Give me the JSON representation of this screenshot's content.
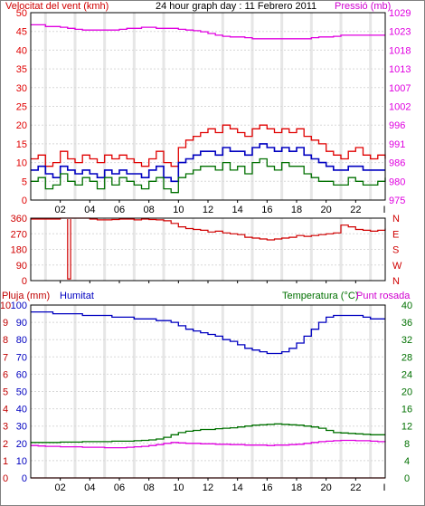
{
  "header": {
    "wind_title": "Velocitat del vent (kmh)",
    "date_title": "24 hour graph day : 11 Febrero 2011",
    "pressure_title": "Pressió (mb)",
    "rain_title": "Pluja (mm)",
    "humidity_title": "Humitat",
    "temp_title": "Temperatura (°C)",
    "dew_title": "Punt rosada"
  },
  "colors": {
    "wind_gust": "#e00000",
    "wind_avg": "#0000c0",
    "wind_min": "#007000",
    "pressure": "#e000e0",
    "direction": "#d00000",
    "humidity": "#0000c0",
    "temperature": "#007000",
    "dewpoint": "#e000e0",
    "rain": "#c00000",
    "grid": "#d8d8d8",
    "frame": "#000000"
  },
  "x_ticks": [
    "02",
    "04",
    "06",
    "08",
    "10",
    "12",
    "14",
    "16",
    "18",
    "20",
    "22"
  ],
  "chart_data": [
    {
      "type": "line",
      "name": "wind_and_pressure",
      "x": [
        0,
        0.5,
        1,
        1.5,
        2,
        2.5,
        3,
        3.5,
        4,
        4.5,
        5,
        5.5,
        6,
        6.5,
        7,
        7.5,
        8,
        8.5,
        9,
        9.5,
        10,
        10.5,
        11,
        11.5,
        12,
        12.5,
        13,
        13.5,
        14,
        14.5,
        15,
        15.5,
        16,
        16.5,
        17,
        17.5,
        18,
        18.5,
        19,
        19.5,
        20,
        20.5,
        21,
        21.5,
        22,
        22.5,
        23,
        23.5,
        24
      ],
      "series": [
        {
          "name": "gust",
          "axis": "left",
          "values": [
            11,
            12,
            9,
            10,
            13,
            11,
            10,
            12,
            11,
            10,
            12,
            11,
            12,
            11,
            10,
            9,
            11,
            13,
            10,
            9,
            14,
            16,
            17,
            18,
            19,
            18,
            20,
            19,
            18,
            17,
            19,
            20,
            19,
            18,
            19,
            18,
            19,
            17,
            16,
            15,
            13,
            12,
            11,
            13,
            14,
            12,
            11,
            12,
            11
          ]
        },
        {
          "name": "average",
          "axis": "left",
          "values": [
            8,
            9,
            7,
            6,
            9,
            8,
            7,
            8,
            7,
            6,
            8,
            7,
            8,
            7,
            7,
            6,
            8,
            9,
            6,
            5,
            10,
            11,
            12,
            13,
            13,
            12,
            14,
            13,
            13,
            12,
            14,
            15,
            14,
            13,
            14,
            13,
            14,
            12,
            11,
            10,
            9,
            8,
            8,
            9,
            9,
            8,
            8,
            8,
            8
          ]
        },
        {
          "name": "min",
          "axis": "left",
          "values": [
            5,
            6,
            3,
            4,
            7,
            5,
            4,
            6,
            5,
            3,
            6,
            4,
            6,
            5,
            4,
            3,
            5,
            6,
            3,
            2,
            6,
            7,
            8,
            9,
            9,
            8,
            10,
            8,
            9,
            7,
            10,
            11,
            9,
            8,
            10,
            9,
            9,
            7,
            6,
            5,
            5,
            4,
            4,
            6,
            5,
            4,
            4,
            5,
            6
          ]
        },
        {
          "name": "pressure",
          "axis": "right",
          "values": [
            1025.5,
            1025.5,
            1025,
            1025,
            1024.8,
            1024.5,
            1024.2,
            1024,
            1024,
            1024,
            1024,
            1024,
            1024.2,
            1024.5,
            1024.5,
            1024.8,
            1024.8,
            1024.5,
            1024.5,
            1024.5,
            1024.2,
            1024,
            1023.8,
            1023.5,
            1023,
            1022.5,
            1022.2,
            1022,
            1022,
            1021.8,
            1021.5,
            1021.5,
            1021.5,
            1021.5,
            1021.5,
            1021.5,
            1021.5,
            1021.5,
            1021.8,
            1022,
            1022,
            1022.2,
            1022.5,
            1022.5,
            1022.5,
            1022.5,
            1022.5,
            1022.5,
            1022.5
          ]
        }
      ],
      "left_axis": {
        "label": "Velocitat del vent (kmh)",
        "ylim": [
          0,
          50
        ],
        "ticks": [
          0,
          5,
          10,
          15,
          20,
          25,
          30,
          35,
          40,
          45,
          50
        ]
      },
      "right_axis": {
        "label": "Pressió (mb)",
        "ylim": [
          975,
          1029
        ],
        "ticks": [
          975,
          980,
          986,
          991,
          996,
          1002,
          1007,
          1013,
          1018,
          1023,
          1029
        ]
      }
    },
    {
      "type": "line",
      "name": "wind_direction",
      "x": [
        0,
        0.5,
        1,
        1.5,
        2,
        2.5,
        3,
        3.5,
        4,
        4.5,
        5,
        5.5,
        6,
        6.5,
        7,
        7.5,
        8,
        8.5,
        9,
        9.5,
        10,
        10.5,
        11,
        11.5,
        12,
        12.5,
        13,
        13.5,
        14,
        14.5,
        15,
        15.5,
        16,
        16.5,
        17,
        17.5,
        18,
        18.5,
        19,
        19.5,
        20,
        20.5,
        21,
        21.5,
        22,
        22.5,
        23,
        23.5,
        24
      ],
      "series": [
        {
          "name": "direction",
          "values": [
            355,
            355,
            355,
            355,
            360,
            360,
            5,
            360,
            355,
            350,
            350,
            352,
            355,
            355,
            350,
            355,
            352,
            350,
            345,
            330,
            310,
            300,
            295,
            290,
            280,
            285,
            275,
            270,
            265,
            250,
            245,
            240,
            235,
            240,
            245,
            250,
            260,
            255,
            260,
            265,
            270,
            275,
            320,
            310,
            295,
            290,
            285,
            290,
            300
          ]
        }
      ],
      "ylim": [
        0,
        360
      ],
      "ticks": [
        0,
        90,
        180,
        270,
        360
      ],
      "right_labels": [
        "N",
        "W",
        "S",
        "E",
        "N"
      ]
    },
    {
      "type": "line",
      "name": "rain_humidity_temperature",
      "x": [
        0,
        0.5,
        1,
        1.5,
        2,
        2.5,
        3,
        3.5,
        4,
        4.5,
        5,
        5.5,
        6,
        6.5,
        7,
        7.5,
        8,
        8.5,
        9,
        9.5,
        10,
        10.5,
        11,
        11.5,
        12,
        12.5,
        13,
        13.5,
        14,
        14.5,
        15,
        15.5,
        16,
        16.5,
        17,
        17.5,
        18,
        18.5,
        19,
        19.5,
        20,
        20.5,
        21,
        21.5,
        22,
        22.5,
        23,
        23.5,
        24
      ],
      "series": [
        {
          "name": "humidity",
          "axis": "left_humidity",
          "values": [
            96,
            96,
            96,
            95,
            95,
            95,
            95,
            94,
            94,
            94,
            94,
            93,
            93,
            93,
            92,
            92,
            92,
            91,
            91,
            90,
            88,
            86,
            85,
            84,
            83,
            82,
            80,
            79,
            77,
            75,
            74,
            73,
            72,
            72,
            73,
            75,
            78,
            82,
            86,
            90,
            93,
            94,
            94,
            94,
            94,
            93,
            92,
            92,
            92
          ]
        },
        {
          "name": "temperature",
          "axis": "right",
          "values": [
            8.2,
            8.2,
            8.2,
            8.2,
            8.3,
            8.3,
            8.3,
            8.4,
            8.4,
            8.4,
            8.4,
            8.5,
            8.5,
            8.5,
            8.6,
            8.7,
            8.8,
            9,
            9.4,
            10,
            10.5,
            10.8,
            11,
            11.2,
            11.2,
            11.4,
            11.5,
            11.6,
            11.8,
            12,
            12.2,
            12.3,
            12.4,
            12.5,
            12.4,
            12.3,
            12.2,
            12,
            11.8,
            11.5,
            11,
            10.5,
            10.4,
            10.3,
            10.2,
            10.1,
            10,
            10,
            10
          ]
        },
        {
          "name": "dew_point",
          "axis": "right",
          "values": [
            7.5,
            7.4,
            7.3,
            7.3,
            7.2,
            7.2,
            7.2,
            7.1,
            7.1,
            7.1,
            7,
            7,
            7,
            7.1,
            7.2,
            7.3,
            7.5,
            7.7,
            8,
            8.2,
            8.1,
            8,
            8,
            7.9,
            7.9,
            7.8,
            7.8,
            7.7,
            7.7,
            7.6,
            7.6,
            7.6,
            7.5,
            7.6,
            7.6,
            7.7,
            7.8,
            8,
            8.2,
            8.4,
            8.5,
            8.6,
            8.7,
            8.7,
            8.6,
            8.6,
            8.5,
            8.4,
            8.3
          ]
        },
        {
          "name": "rain",
          "axis": "left_rain",
          "values": [
            0,
            0,
            0,
            0,
            0,
            0,
            0,
            0,
            0,
            0,
            0,
            0,
            0,
            0,
            0,
            0,
            0,
            0,
            0,
            0,
            0,
            0,
            0,
            0,
            0,
            0,
            0,
            0,
            0,
            0,
            0,
            0,
            0,
            0,
            0,
            0,
            0,
            0,
            0,
            0,
            0,
            0,
            0,
            0,
            0,
            0,
            0,
            0,
            0
          ]
        }
      ],
      "rain_axis": {
        "label": "Pluja (mm)",
        "ylim": [
          0,
          10
        ],
        "ticks": [
          0,
          1,
          2,
          3,
          4,
          5,
          6,
          7,
          8,
          9,
          10
        ]
      },
      "humidity_axis": {
        "label": "Humitat",
        "ylim": [
          0,
          100
        ],
        "ticks": [
          0,
          10,
          20,
          30,
          40,
          50,
          60,
          70,
          80,
          90,
          100
        ]
      },
      "right_axis": {
        "label": "Temperatura (°C)",
        "ylim": [
          0,
          40
        ],
        "ticks": [
          0,
          4,
          8,
          12,
          16,
          20,
          24,
          28,
          32,
          36,
          40
        ]
      }
    }
  ]
}
